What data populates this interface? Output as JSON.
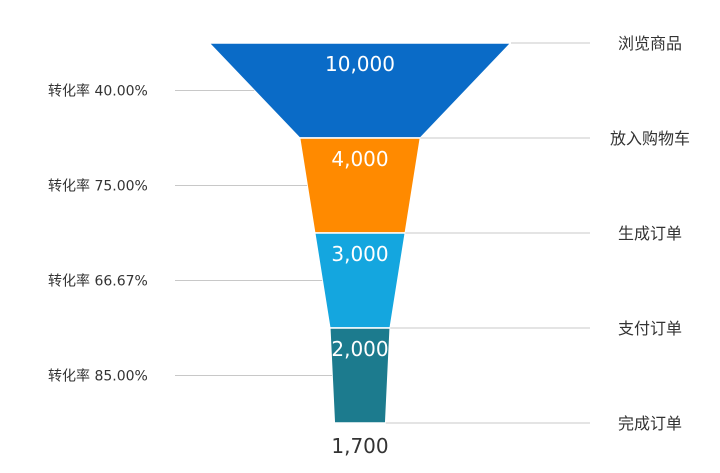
{
  "chart_data": {
    "type": "funnel",
    "stages": [
      {
        "label": "浏览商品",
        "value": 10000,
        "value_label": "10,000",
        "color": "#0A6BC7"
      },
      {
        "label": "放入购物车",
        "value": 4000,
        "value_label": "4,000",
        "color": "#FF8A00"
      },
      {
        "label": "生成订单",
        "value": 3000,
        "value_label": "3,000",
        "color": "#14A6DF"
      },
      {
        "label": "支付订单",
        "value": 2000,
        "value_label": "2,000",
        "color": "#1C7B8E"
      },
      {
        "label": "完成订单",
        "value": 1700,
        "value_label": "1,700",
        "color": "#1C7B8E"
      }
    ],
    "conversion_rates": [
      {
        "label": "转化率 40.00%",
        "value": 40.0
      },
      {
        "label": "转化率 75.00%",
        "value": 75.0
      },
      {
        "label": "转化率 66.67%",
        "value": 66.67
      },
      {
        "label": "转化率 85.00%",
        "value": 85.0
      }
    ]
  },
  "colors": {
    "guide_line": "#C8C8C8",
    "value_label_inside": "#FFFFFF",
    "value_label_outside": "#333333",
    "text": "#333333"
  }
}
